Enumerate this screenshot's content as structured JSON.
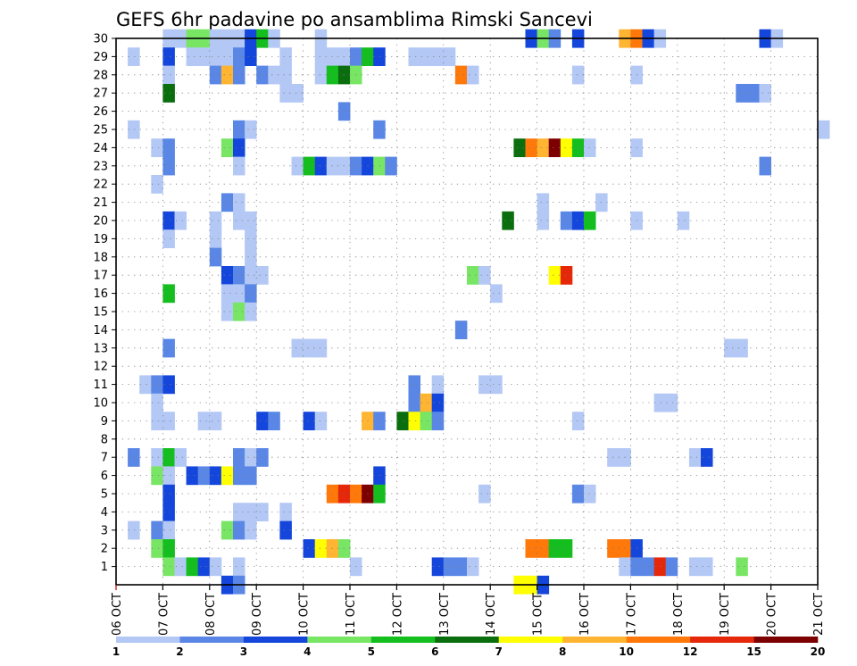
{
  "chart_data": {
    "type": "heatmap",
    "title": "GEFS 6hr padavine po ansamblima Rimski Sancevi",
    "xlabel": "",
    "ylabel": "",
    "x_tick_labels": [
      "06 OCT",
      "07 OCT",
      "08 OCT",
      "09 OCT",
      "10 OCT",
      "11 OCT",
      "12 OCT",
      "13 OCT",
      "14 OCT",
      "15 OCT",
      "16 OCT",
      "17 OCT",
      "18 OCT",
      "19 OCT",
      "20 OCT",
      "21 OCT"
    ],
    "x_range_days": [
      0,
      15
    ],
    "y_range": [
      0,
      30
    ],
    "y_tick_labels": [
      "1",
      "2",
      "3",
      "4",
      "5",
      "6",
      "7",
      "8",
      "9",
      "10",
      "11",
      "12",
      "13",
      "14",
      "15",
      "16",
      "17",
      "18",
      "19",
      "20",
      "21",
      "22",
      "23",
      "24",
      "25",
      "26",
      "27",
      "28",
      "29",
      "30"
    ],
    "time_step_hours": 6,
    "grid": "dotted",
    "colorbar": {
      "position": "bottom",
      "labels": [
        "1",
        "2",
        "3",
        "4",
        "5",
        "6",
        "7",
        "8",
        "10",
        "12",
        "15",
        "20"
      ],
      "colors": [
        "#b4c8f5",
        "#5a87e6",
        "#1446dc",
        "#78e664",
        "#14be1e",
        "#0a6e0f",
        "#ffff00",
        "#ffb432",
        "#ff780a",
        "#e6280a",
        "#7d0000"
      ]
    },
    "cells": [
      [
        30,
        4,
        1
      ],
      [
        30,
        5,
        1
      ],
      [
        30,
        6,
        4
      ],
      [
        30,
        7,
        4
      ],
      [
        30,
        8,
        1
      ],
      [
        30,
        9,
        1
      ],
      [
        30,
        10,
        1
      ],
      [
        30,
        11,
        3
      ],
      [
        30,
        12,
        5
      ],
      [
        30,
        13,
        1
      ],
      [
        30,
        17,
        1
      ],
      [
        30,
        35,
        3
      ],
      [
        30,
        36,
        4
      ],
      [
        30,
        37,
        2
      ],
      [
        30,
        39,
        3
      ],
      [
        30,
        43,
        8
      ],
      [
        30,
        44,
        9
      ],
      [
        30,
        45,
        3
      ],
      [
        30,
        46,
        1
      ],
      [
        30,
        55,
        3
      ],
      [
        30,
        56,
        1
      ],
      [
        29,
        1,
        1
      ],
      [
        29,
        4,
        3
      ],
      [
        29,
        6,
        1
      ],
      [
        29,
        7,
        1
      ],
      [
        29,
        8,
        1
      ],
      [
        29,
        9,
        1
      ],
      [
        29,
        10,
        2
      ],
      [
        29,
        11,
        3
      ],
      [
        29,
        14,
        1
      ],
      [
        29,
        17,
        1
      ],
      [
        29,
        18,
        1
      ],
      [
        29,
        19,
        1
      ],
      [
        29,
        20,
        2
      ],
      [
        29,
        21,
        5
      ],
      [
        29,
        22,
        3
      ],
      [
        29,
        25,
        1
      ],
      [
        29,
        26,
        1
      ],
      [
        29,
        27,
        1
      ],
      [
        29,
        28,
        1
      ],
      [
        28,
        4,
        1
      ],
      [
        28,
        8,
        2
      ],
      [
        28,
        9,
        8
      ],
      [
        28,
        10,
        2
      ],
      [
        28,
        12,
        2
      ],
      [
        28,
        13,
        1
      ],
      [
        28,
        14,
        1
      ],
      [
        28,
        17,
        1
      ],
      [
        28,
        18,
        5
      ],
      [
        28,
        19,
        6
      ],
      [
        28,
        20,
        4
      ],
      [
        28,
        29,
        9
      ],
      [
        28,
        30,
        1
      ],
      [
        28,
        39,
        1
      ],
      [
        28,
        44,
        1
      ],
      [
        27,
        4,
        6
      ],
      [
        27,
        14,
        1
      ],
      [
        27,
        15,
        1
      ],
      [
        27,
        53,
        2
      ],
      [
        27,
        54,
        2
      ],
      [
        27,
        55,
        1
      ],
      [
        26,
        19,
        2
      ],
      [
        25,
        1,
        1
      ],
      [
        25,
        10,
        2
      ],
      [
        25,
        11,
        1
      ],
      [
        25,
        22,
        2
      ],
      [
        25,
        60,
        1
      ],
      [
        24,
        3,
        1
      ],
      [
        24,
        4,
        2
      ],
      [
        24,
        9,
        4
      ],
      [
        24,
        10,
        3
      ],
      [
        24,
        34,
        6
      ],
      [
        24,
        35,
        9
      ],
      [
        24,
        36,
        8
      ],
      [
        24,
        37,
        11
      ],
      [
        24,
        38,
        7
      ],
      [
        24,
        39,
        5
      ],
      [
        24,
        40,
        1
      ],
      [
        24,
        44,
        1
      ],
      [
        23,
        4,
        2
      ],
      [
        23,
        10,
        1
      ],
      [
        23,
        15,
        1
      ],
      [
        23,
        16,
        5
      ],
      [
        23,
        17,
        3
      ],
      [
        23,
        18,
        1
      ],
      [
        23,
        19,
        1
      ],
      [
        23,
        20,
        2
      ],
      [
        23,
        21,
        3
      ],
      [
        23,
        22,
        4
      ],
      [
        23,
        23,
        2
      ],
      [
        23,
        55,
        2
      ],
      [
        22,
        3,
        1
      ],
      [
        21,
        9,
        2
      ],
      [
        21,
        10,
        1
      ],
      [
        21,
        36,
        1
      ],
      [
        21,
        41,
        1
      ],
      [
        20,
        4,
        3
      ],
      [
        20,
        5,
        1
      ],
      [
        20,
        8,
        1
      ],
      [
        20,
        10,
        1
      ],
      [
        20,
        11,
        1
      ],
      [
        20,
        33,
        6
      ],
      [
        20,
        36,
        1
      ],
      [
        20,
        38,
        2
      ],
      [
        20,
        39,
        3
      ],
      [
        20,
        40,
        5
      ],
      [
        20,
        44,
        1
      ],
      [
        20,
        48,
        1
      ],
      [
        19,
        4,
        1
      ],
      [
        19,
        8,
        1
      ],
      [
        19,
        11,
        1
      ],
      [
        18,
        8,
        2
      ],
      [
        18,
        11,
        1
      ],
      [
        17,
        9,
        3
      ],
      [
        17,
        10,
        2
      ],
      [
        17,
        11,
        1
      ],
      [
        17,
        12,
        1
      ],
      [
        17,
        30,
        4
      ],
      [
        17,
        31,
        1
      ],
      [
        17,
        37,
        7
      ],
      [
        17,
        38,
        10
      ],
      [
        16,
        4,
        5
      ],
      [
        16,
        9,
        1
      ],
      [
        16,
        10,
        1
      ],
      [
        16,
        11,
        2
      ],
      [
        16,
        32,
        1
      ],
      [
        15,
        9,
        1
      ],
      [
        15,
        10,
        4
      ],
      [
        15,
        11,
        1
      ],
      [
        14,
        29,
        2
      ],
      [
        13,
        4,
        2
      ],
      [
        13,
        15,
        1
      ],
      [
        13,
        16,
        1
      ],
      [
        13,
        17,
        1
      ],
      [
        13,
        52,
        1
      ],
      [
        13,
        53,
        1
      ],
      [
        11,
        2,
        1
      ],
      [
        11,
        3,
        2
      ],
      [
        11,
        4,
        3
      ],
      [
        11,
        25,
        2
      ],
      [
        11,
        27,
        1
      ],
      [
        11,
        31,
        1
      ],
      [
        11,
        32,
        1
      ],
      [
        10,
        3,
        1
      ],
      [
        10,
        25,
        2
      ],
      [
        10,
        26,
        8
      ],
      [
        10,
        27,
        3
      ],
      [
        10,
        46,
        1
      ],
      [
        10,
        47,
        1
      ],
      [
        9,
        3,
        1
      ],
      [
        9,
        4,
        1
      ],
      [
        9,
        7,
        1
      ],
      [
        9,
        8,
        1
      ],
      [
        9,
        12,
        3
      ],
      [
        9,
        13,
        2
      ],
      [
        9,
        16,
        3
      ],
      [
        9,
        17,
        1
      ],
      [
        9,
        21,
        8
      ],
      [
        9,
        22,
        2
      ],
      [
        9,
        24,
        6
      ],
      [
        9,
        25,
        7
      ],
      [
        9,
        26,
        4
      ],
      [
        9,
        27,
        2
      ],
      [
        9,
        39,
        1
      ],
      [
        7,
        1,
        2
      ],
      [
        7,
        3,
        1
      ],
      [
        7,
        4,
        5
      ],
      [
        7,
        5,
        1
      ],
      [
        7,
        10,
        2
      ],
      [
        7,
        11,
        1
      ],
      [
        7,
        12,
        2
      ],
      [
        7,
        42,
        1
      ],
      [
        7,
        43,
        1
      ],
      [
        7,
        49,
        1
      ],
      [
        7,
        50,
        3
      ],
      [
        6,
        3,
        4
      ],
      [
        6,
        4,
        1
      ],
      [
        6,
        6,
        3
      ],
      [
        6,
        7,
        2
      ],
      [
        6,
        8,
        3
      ],
      [
        6,
        9,
        7
      ],
      [
        6,
        10,
        2
      ],
      [
        6,
        11,
        2
      ],
      [
        6,
        22,
        3
      ],
      [
        5,
        4,
        3
      ],
      [
        5,
        18,
        9
      ],
      [
        5,
        19,
        10
      ],
      [
        5,
        20,
        9
      ],
      [
        5,
        21,
        11
      ],
      [
        5,
        22,
        5
      ],
      [
        5,
        31,
        1
      ],
      [
        5,
        39,
        2
      ],
      [
        5,
        40,
        1
      ],
      [
        4,
        4,
        3
      ],
      [
        4,
        10,
        1
      ],
      [
        4,
        11,
        1
      ],
      [
        4,
        12,
        1
      ],
      [
        4,
        14,
        1
      ],
      [
        3,
        1,
        1
      ],
      [
        3,
        3,
        2
      ],
      [
        3,
        4,
        1
      ],
      [
        3,
        9,
        4
      ],
      [
        3,
        10,
        2
      ],
      [
        3,
        11,
        1
      ],
      [
        3,
        14,
        3
      ],
      [
        2,
        3,
        4
      ],
      [
        2,
        4,
        5
      ],
      [
        2,
        16,
        3
      ],
      [
        2,
        17,
        7
      ],
      [
        2,
        18,
        8
      ],
      [
        2,
        19,
        4
      ],
      [
        2,
        35,
        9
      ],
      [
        2,
        36,
        9
      ],
      [
        2,
        37,
        5
      ],
      [
        2,
        38,
        5
      ],
      [
        2,
        42,
        9
      ],
      [
        2,
        43,
        9
      ],
      [
        2,
        44,
        3
      ],
      [
        1,
        4,
        4
      ],
      [
        1,
        5,
        1
      ],
      [
        1,
        6,
        5
      ],
      [
        1,
        7,
        3
      ],
      [
        1,
        8,
        1
      ],
      [
        1,
        10,
        1
      ],
      [
        1,
        20,
        1
      ],
      [
        1,
        27,
        3
      ],
      [
        1,
        28,
        2
      ],
      [
        1,
        29,
        2
      ],
      [
        1,
        30,
        1
      ],
      [
        1,
        43,
        1
      ],
      [
        1,
        44,
        2
      ],
      [
        1,
        45,
        2
      ],
      [
        1,
        46,
        10
      ],
      [
        1,
        47,
        2
      ],
      [
        1,
        49,
        1
      ],
      [
        1,
        50,
        1
      ],
      [
        1,
        53,
        4
      ],
      [
        0,
        9,
        3
      ],
      [
        0,
        10,
        2
      ],
      [
        0,
        34,
        7
      ],
      [
        0,
        35,
        7
      ],
      [
        0,
        36,
        3
      ]
    ]
  }
}
